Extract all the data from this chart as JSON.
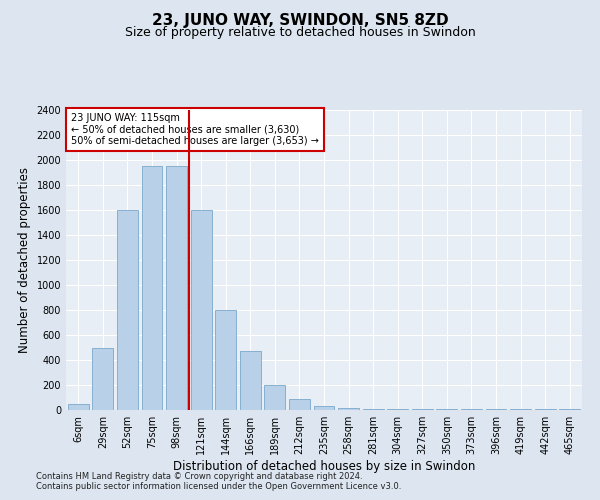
{
  "title": "23, JUNO WAY, SWINDON, SN5 8ZD",
  "subtitle": "Size of property relative to detached houses in Swindon",
  "xlabel": "Distribution of detached houses by size in Swindon",
  "ylabel": "Number of detached properties",
  "footnote1": "Contains HM Land Registry data © Crown copyright and database right 2024.",
  "footnote2": "Contains public sector information licensed under the Open Government Licence v3.0.",
  "categories": [
    "6sqm",
    "29sqm",
    "52sqm",
    "75sqm",
    "98sqm",
    "121sqm",
    "144sqm",
    "166sqm",
    "189sqm",
    "212sqm",
    "235sqm",
    "258sqm",
    "281sqm",
    "304sqm",
    "327sqm",
    "350sqm",
    "373sqm",
    "396sqm",
    "419sqm",
    "442sqm",
    "465sqm"
  ],
  "values": [
    50,
    500,
    1600,
    1950,
    1950,
    1600,
    800,
    470,
    200,
    90,
    30,
    20,
    10,
    10,
    5,
    5,
    5,
    5,
    5,
    5,
    5
  ],
  "bar_color": "#b8d0e8",
  "bar_edge_color": "#7aa8cc",
  "vline_color": "#cc0000",
  "vline_x_index": 4.5,
  "annotation_text": "23 JUNO WAY: 115sqm\n← 50% of detached houses are smaller (3,630)\n50% of semi-detached houses are larger (3,653) →",
  "annotation_box_color": "white",
  "annotation_box_edge_color": "#cc0000",
  "ylim": [
    0,
    2400
  ],
  "yticks": [
    0,
    200,
    400,
    600,
    800,
    1000,
    1200,
    1400,
    1600,
    1800,
    2000,
    2200,
    2400
  ],
  "bg_color": "#dde6f0",
  "plot_bg_color": "#e8eef5",
  "grid_color": "#ffffff",
  "title_fontsize": 11,
  "subtitle_fontsize": 9,
  "tick_fontsize": 7,
  "label_fontsize": 8.5,
  "footnote_fontsize": 6
}
